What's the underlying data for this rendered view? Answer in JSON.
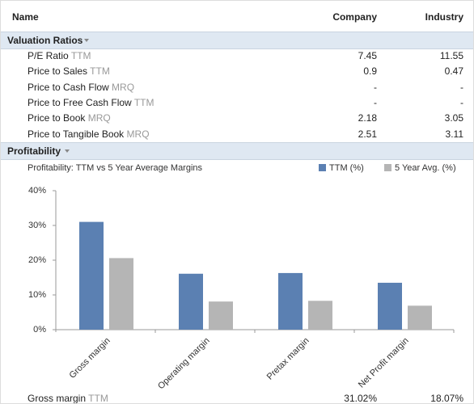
{
  "table": {
    "header": [
      "Name",
      "Company",
      "Industry"
    ],
    "sections": [
      {
        "title": "Valuation Ratios",
        "rows": [
          {
            "label": "P/E Ratio",
            "period": "TTM",
            "company": "7.45",
            "industry": "11.55"
          },
          {
            "label": "Price to Sales",
            "period": "TTM",
            "company": "0.9",
            "industry": "0.47"
          },
          {
            "label": "Price to Cash Flow",
            "period": "MRQ",
            "company": "-",
            "industry": "-"
          },
          {
            "label": "Price to Free Cash Flow",
            "period": "TTM",
            "company": "-",
            "industry": "-"
          },
          {
            "label": "Price to Book",
            "period": "MRQ",
            "company": "2.18",
            "industry": "3.05"
          },
          {
            "label": "Price to Tangible Book",
            "period": "MRQ",
            "company": "2.51",
            "industry": "3.11"
          }
        ]
      },
      {
        "title": "Profitability",
        "rows": [
          {
            "label": "Gross margin",
            "period": "TTM",
            "company": "31.02%",
            "industry": "18.07%"
          }
        ]
      }
    ]
  },
  "chart_data": {
    "type": "bar",
    "title": "Profitability: TTM vs 5 Year Average Margins",
    "categories": [
      "Gross margin",
      "Operating margin",
      "Pretax margin",
      "Net Profit margin"
    ],
    "series": [
      {
        "name": "TTM (%)",
        "color": "#5b80b2",
        "values": [
          31.02,
          16.1,
          16.3,
          13.5
        ]
      },
      {
        "name": "5 Year Avg. (%)",
        "color": "#b5b5b5",
        "values": [
          20.6,
          8.1,
          8.3,
          6.9
        ]
      }
    ],
    "ylim": [
      0,
      40
    ],
    "yticks": [
      {
        "value": 0,
        "label": "0%"
      },
      {
        "value": 10,
        "label": "10%"
      },
      {
        "value": 20,
        "label": "20%"
      },
      {
        "value": 30,
        "label": "30%"
      },
      {
        "value": 40,
        "label": "40%"
      }
    ],
    "grid": false
  }
}
